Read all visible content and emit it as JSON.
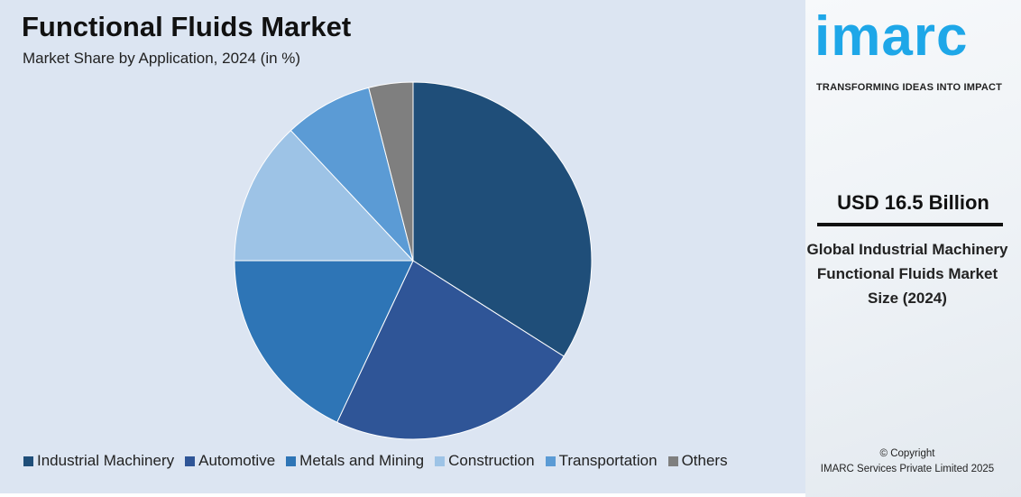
{
  "header": {
    "title": "Functional Fluids Market",
    "subtitle": "Market Share by Application, 2024 (in %)"
  },
  "chart_data": {
    "type": "pie",
    "title": "Functional Fluids Market",
    "subtitle": "Market Share by Application, 2024 (in %)",
    "categories": [
      "Industrial Machinery",
      "Automotive",
      "Metals and Mining",
      "Construction",
      "Transportation",
      "Others"
    ],
    "values": [
      34,
      23,
      18,
      13,
      8,
      4
    ],
    "colors": [
      "#1f4e79",
      "#2f5597",
      "#2e75b6",
      "#9dc3e6",
      "#5b9bd5",
      "#7f7f7f"
    ],
    "legend_position": "bottom"
  },
  "sidebar": {
    "logo": "imarc",
    "tagline": "TRANSFORMING IDEAS INTO IMPACT",
    "value": "USD 16.5 Billion",
    "description": "Global Industrial Machinery Functional Fluids Market Size (2024)",
    "copyright": "© Copyright",
    "company": "IMARC Services Private Limited 2025"
  }
}
